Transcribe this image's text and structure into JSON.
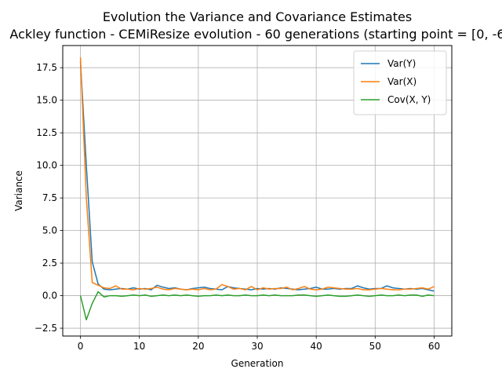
{
  "chart_data": {
    "type": "line",
    "title": "Evolution the Variance and Covariance Estimates",
    "subtitle": "Ackley function - CEMiResize evolution - 60 generations (starting point = [0, -6",
    "xlabel": "Generation",
    "ylabel": "Variance",
    "xlim": [
      -3,
      63
    ],
    "ylim": [
      -3.1,
      19.2
    ],
    "xticks": [
      0,
      10,
      20,
      30,
      40,
      50,
      60
    ],
    "yticks": [
      -2.5,
      0.0,
      2.5,
      5.0,
      7.5,
      10.0,
      12.5,
      15.0,
      17.5
    ],
    "ytick_labels": [
      "−2.5",
      "0.0",
      "2.5",
      "5.0",
      "7.5",
      "10.0",
      "12.5",
      "15.0",
      "17.5"
    ],
    "grid": true,
    "legend_position": "top-right",
    "series": [
      {
        "name": "Var(Y)",
        "color": "#1f77b4",
        "values": [
          18.0,
          10.0,
          2.6,
          0.9,
          0.5,
          0.45,
          0.5,
          0.55,
          0.5,
          0.6,
          0.5,
          0.55,
          0.45,
          0.8,
          0.65,
          0.55,
          0.6,
          0.5,
          0.45,
          0.55,
          0.6,
          0.65,
          0.55,
          0.5,
          0.45,
          0.7,
          0.6,
          0.55,
          0.5,
          0.45,
          0.55,
          0.5,
          0.55,
          0.5,
          0.6,
          0.55,
          0.5,
          0.45,
          0.5,
          0.55,
          0.65,
          0.5,
          0.5,
          0.55,
          0.5,
          0.55,
          0.55,
          0.75,
          0.6,
          0.5,
          0.55,
          0.55,
          0.75,
          0.6,
          0.55,
          0.5,
          0.55,
          0.5,
          0.55,
          0.45,
          0.35
        ]
      },
      {
        "name": "Var(X)",
        "color": "#ff7f0e",
        "values": [
          18.3,
          7.5,
          1.0,
          0.8,
          0.6,
          0.55,
          0.75,
          0.5,
          0.5,
          0.45,
          0.55,
          0.5,
          0.55,
          0.65,
          0.5,
          0.45,
          0.55,
          0.5,
          0.45,
          0.5,
          0.45,
          0.55,
          0.45,
          0.5,
          0.85,
          0.7,
          0.5,
          0.55,
          0.45,
          0.7,
          0.45,
          0.6,
          0.5,
          0.55,
          0.55,
          0.65,
          0.45,
          0.55,
          0.7,
          0.5,
          0.45,
          0.5,
          0.65,
          0.6,
          0.55,
          0.5,
          0.5,
          0.55,
          0.45,
          0.45,
          0.5,
          0.55,
          0.5,
          0.45,
          0.45,
          0.5,
          0.5,
          0.55,
          0.6,
          0.5,
          0.7
        ]
      },
      {
        "name": "Cov(X, Y)",
        "color": "#2ca02c",
        "values": [
          0.0,
          -1.85,
          -0.6,
          0.3,
          -0.1,
          0.0,
          0.0,
          -0.05,
          0.0,
          0.05,
          0.0,
          0.05,
          -0.05,
          0.0,
          0.05,
          0.0,
          0.05,
          0.0,
          0.05,
          0.0,
          -0.05,
          0.0,
          0.0,
          0.05,
          0.0,
          0.05,
          0.0,
          0.0,
          0.05,
          0.0,
          0.0,
          0.05,
          0.0,
          0.05,
          0.0,
          0.0,
          0.0,
          0.05,
          0.05,
          0.0,
          -0.05,
          0.0,
          0.05,
          0.0,
          -0.05,
          -0.05,
          0.0,
          0.05,
          0.0,
          -0.05,
          0.0,
          0.05,
          0.0,
          0.0,
          0.05,
          0.0,
          0.05,
          0.05,
          -0.05,
          0.05,
          0.0
        ]
      }
    ]
  }
}
